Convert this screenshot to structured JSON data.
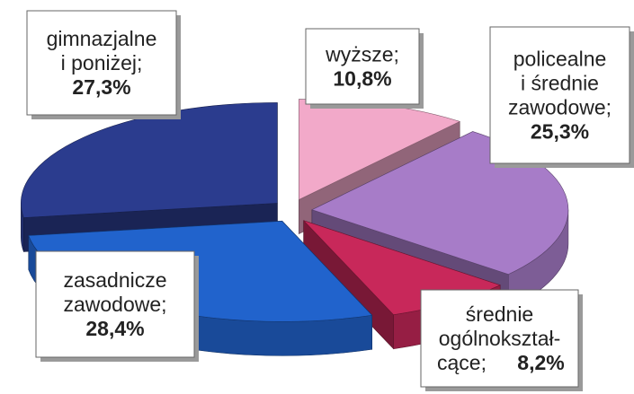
{
  "chart_data": {
    "type": "pie3d",
    "categories": [
      "wyższe;",
      "policealne\ni średnie\nzawodowe;",
      "średnie\nogólnokształ-\ncące;",
      "zasadnicze\nzawodowe;",
      "gimnazjalne\ni poniżej;"
    ],
    "values": [
      10.8,
      25.3,
      8.2,
      28.4,
      27.3
    ],
    "value_labels": [
      "10,8%",
      "25,3%",
      "8,2%",
      "28,4%",
      "27,3%"
    ],
    "colors": [
      "#f2a9c9",
      "#a77cc8",
      "#c8285a",
      "#2163cc",
      "#2b3c8e"
    ]
  }
}
